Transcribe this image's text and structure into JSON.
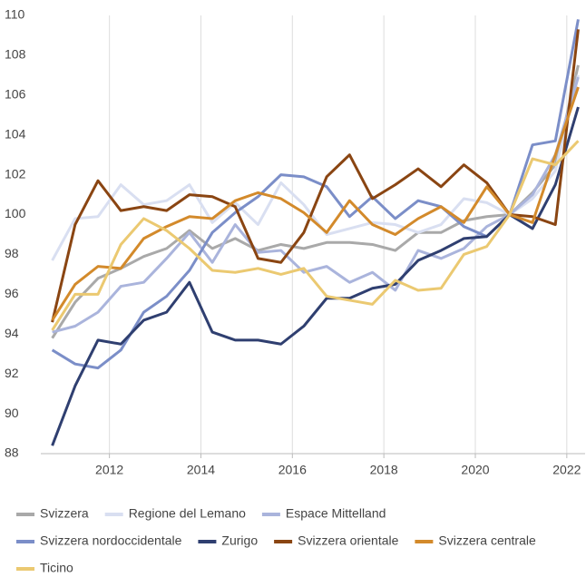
{
  "chart_data": {
    "type": "line",
    "x": [
      2010.75,
      2011.25,
      2011.75,
      2012.25,
      2012.75,
      2013.25,
      2013.75,
      2014.25,
      2014.75,
      2015.25,
      2015.75,
      2016.25,
      2016.75,
      2017.25,
      2017.75,
      2018.25,
      2018.75,
      2019.25,
      2019.75,
      2020.25,
      2020.75,
      2021.25,
      2021.75,
      2022.25
    ],
    "xlim": [
      2010.5,
      2022.4
    ],
    "xticks": [
      2012,
      2014,
      2016,
      2018,
      2020,
      2022
    ],
    "ylim": [
      88,
      110
    ],
    "yticks": [
      88,
      90,
      92,
      94,
      96,
      98,
      100,
      102,
      104,
      106,
      108,
      110
    ],
    "grid": true,
    "legend": "bottom",
    "series": [
      {
        "name": "Svizzera",
        "color": "#a9a9a9",
        "values": [
          93.8,
          95.6,
          96.8,
          97.3,
          97.9,
          98.3,
          99.2,
          98.3,
          98.8,
          98.2,
          98.5,
          98.3,
          98.6,
          98.6,
          98.5,
          98.2,
          99.1,
          99.1,
          99.7,
          99.9,
          100.0,
          101.1,
          102.5,
          107.5
        ]
      },
      {
        "name": "Regione del Lemano",
        "color": "#d9dff1",
        "values": [
          97.7,
          99.8,
          99.9,
          101.5,
          100.5,
          100.7,
          101.5,
          99.6,
          100.6,
          99.5,
          101.6,
          100.5,
          99.0,
          99.3,
          99.6,
          99.5,
          99.1,
          99.5,
          100.8,
          100.6,
          100.0,
          100.8,
          102.2,
          107.0
        ]
      },
      {
        "name": "Espace Mittelland",
        "color": "#aab4dc",
        "values": [
          94.1,
          94.4,
          95.1,
          96.4,
          96.6,
          97.8,
          99.1,
          97.6,
          99.5,
          98.1,
          98.2,
          97.1,
          97.4,
          96.6,
          97.1,
          96.2,
          98.2,
          97.8,
          98.3,
          99.4,
          100.0,
          101.0,
          103.0,
          106.9
        ]
      },
      {
        "name": "Svizzera nordoccidentale",
        "color": "#7b8ec8",
        "values": [
          93.2,
          92.5,
          92.3,
          93.2,
          95.1,
          95.9,
          97.2,
          99.1,
          100.1,
          100.9,
          102.0,
          101.9,
          101.4,
          99.9,
          100.9,
          99.8,
          100.7,
          100.4,
          99.4,
          98.9,
          100.0,
          103.5,
          103.7,
          109.8
        ]
      },
      {
        "name": "Zurigo",
        "color": "#2f3f70",
        "values": [
          88.4,
          91.4,
          93.7,
          93.5,
          94.7,
          95.1,
          96.6,
          94.1,
          93.7,
          93.7,
          93.5,
          94.4,
          95.8,
          95.8,
          96.3,
          96.5,
          97.7,
          98.2,
          98.8,
          98.9,
          100.0,
          99.3,
          101.5,
          105.4
        ]
      },
      {
        "name": "Svizzera orientale",
        "color": "#8a4512",
        "values": [
          94.6,
          99.5,
          101.7,
          100.2,
          100.4,
          100.2,
          101.0,
          100.9,
          100.4,
          97.8,
          97.6,
          99.1,
          101.9,
          103.0,
          100.8,
          101.5,
          102.3,
          101.4,
          102.5,
          101.6,
          100.0,
          99.9,
          99.5,
          109.3
        ]
      },
      {
        "name": "Svizzera centrale",
        "color": "#d38a2b",
        "values": [
          94.7,
          96.5,
          97.4,
          97.3,
          98.8,
          99.4,
          99.9,
          99.8,
          100.7,
          101.1,
          100.8,
          100.1,
          99.1,
          100.7,
          99.5,
          99.0,
          99.8,
          100.4,
          99.6,
          101.4,
          100.0,
          99.6,
          103.0,
          106.4
        ]
      },
      {
        "name": "Ticino",
        "color": "#ebc971",
        "values": [
          94.2,
          96.0,
          96.0,
          98.5,
          99.8,
          99.2,
          98.3,
          97.2,
          97.1,
          97.3,
          97.0,
          97.3,
          95.9,
          95.7,
          95.5,
          96.7,
          96.2,
          96.3,
          98.0,
          98.4,
          100.0,
          102.8,
          102.5,
          103.7
        ]
      }
    ]
  }
}
